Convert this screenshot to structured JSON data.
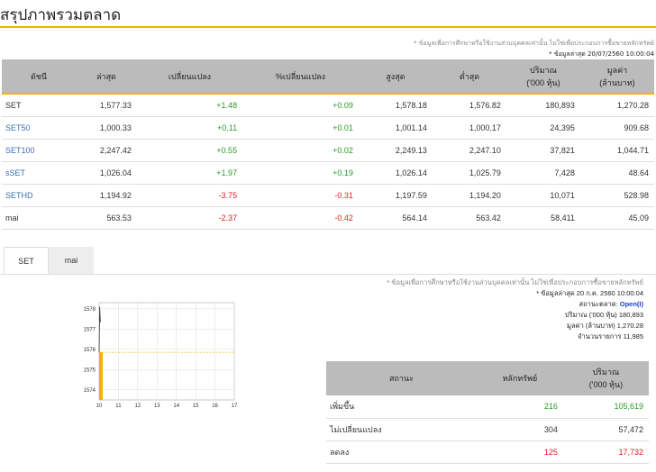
{
  "page_title": "สรุปภาพรวมตลาด",
  "top_note": "* ข้อมูลเพื่อการศึกษาหรือใช้งานส่วนบุคคลเท่านั้น ไม่ใช่เพื่อประกอบการซื้อขายหลักทรัพย์",
  "top_updated": "* ข้อมูลล่าสุด 20/07/2560 10:00:04",
  "market_table": {
    "headers": [
      "ดัชนี",
      "ล่าสุด",
      "เปลี่ยนแปลง",
      "%เปลี่ยนแปลง",
      "สูงสุด",
      "ต่ำสุด",
      "ปริมาณ\n('000 หุ้น)",
      "มูลค่า\n(ล้านบาท)"
    ],
    "rows": [
      {
        "name": "SET",
        "last": "1,577.33",
        "change": "+1.48",
        "pct": "+0.09",
        "high": "1,578.18",
        "low": "1,576.82",
        "volume": "180,893",
        "value": "1,270.28",
        "link": false,
        "dir": "pos"
      },
      {
        "name": "SET50",
        "last": "1,000.33",
        "change": "+0.11",
        "pct": "+0.01",
        "high": "1,001.14",
        "low": "1,000.17",
        "volume": "24,395",
        "value": "909.68",
        "link": true,
        "dir": "pos"
      },
      {
        "name": "SET100",
        "last": "2,247.42",
        "change": "+0.55",
        "pct": "+0.02",
        "high": "2,249.13",
        "low": "2,247.10",
        "volume": "37,821",
        "value": "1,044.71",
        "link": true,
        "dir": "pos"
      },
      {
        "name": "sSET",
        "last": "1,026.04",
        "change": "+1.97",
        "pct": "+0.19",
        "high": "1,026.14",
        "low": "1,025.79",
        "volume": "7,428",
        "value": "48.64",
        "link": true,
        "dir": "pos"
      },
      {
        "name": "SETHD",
        "last": "1,194.92",
        "change": "-3.75",
        "pct": "-0.31",
        "high": "1,197.59",
        "low": "1,194.20",
        "volume": "10,071",
        "value": "528.98",
        "link": true,
        "dir": "neg"
      },
      {
        "name": "mai",
        "last": "563.53",
        "change": "-2.37",
        "pct": "-0.42",
        "high": "564.14",
        "low": "563.42",
        "volume": "58,411",
        "value": "45.09",
        "link": false,
        "dir": "neg"
      }
    ]
  },
  "tabs": [
    "SET",
    "mai"
  ],
  "chart_data": {
    "type": "line",
    "x_ticks": [
      "10",
      "11",
      "12",
      "13",
      "14",
      "15",
      "16",
      "17"
    ],
    "y_ticks": [
      "1578",
      "1577",
      "1576",
      "1575",
      "1574"
    ],
    "ylim": [
      1573.5,
      1578.3
    ],
    "xlim": [
      10,
      17
    ],
    "prev_close": 1575.85,
    "line": [
      [
        10.0,
        1575.85
      ],
      [
        10.03,
        1578.1
      ],
      [
        10.06,
        1577.4
      ],
      [
        10.08,
        1577.33
      ]
    ],
    "bar_value": 1577.33
  },
  "right_notes": {
    "disclaimer": "* ข้อมูลเพื่อการศึกษาหรือใช้งานส่วนบุคคลเท่านั้น ไม่ใช่เพื่อประกอบการซื้อขายหลักทรัพย์",
    "updated": "* ข้อมูลล่าสุด 20 ก.ค. 2560 10:00:04",
    "status_label": "สถานะตลาด:",
    "status_value": "Open(I)",
    "volume_line": "ปริมาณ ('000 หุ้น)  180,893",
    "value_line": "มูลค่า (ล้านบาท)  1,270.28",
    "trades_line": "จำนวนรายการ  11,985"
  },
  "status_table": {
    "headers": [
      "สถานะ",
      "หลักทรัพย์",
      "ปริมาณ\n('000 หุ้น)"
    ],
    "rows": [
      {
        "label": "เพิ่มขึ้น",
        "count": "216",
        "volume": "105,619",
        "dir": "pos"
      },
      {
        "label": "ไม่เปลี่ยนแปลง",
        "count": "304",
        "volume": "57,472",
        "dir": "none"
      },
      {
        "label": "ลดลง",
        "count": "125",
        "volume": "17,732",
        "dir": "neg"
      }
    ]
  },
  "colors": {
    "accent": "#f0b400",
    "up": "#2a9a2a",
    "down": "#e02020",
    "link": "#3a6fb0",
    "header_bg": "#bbbbbb"
  }
}
